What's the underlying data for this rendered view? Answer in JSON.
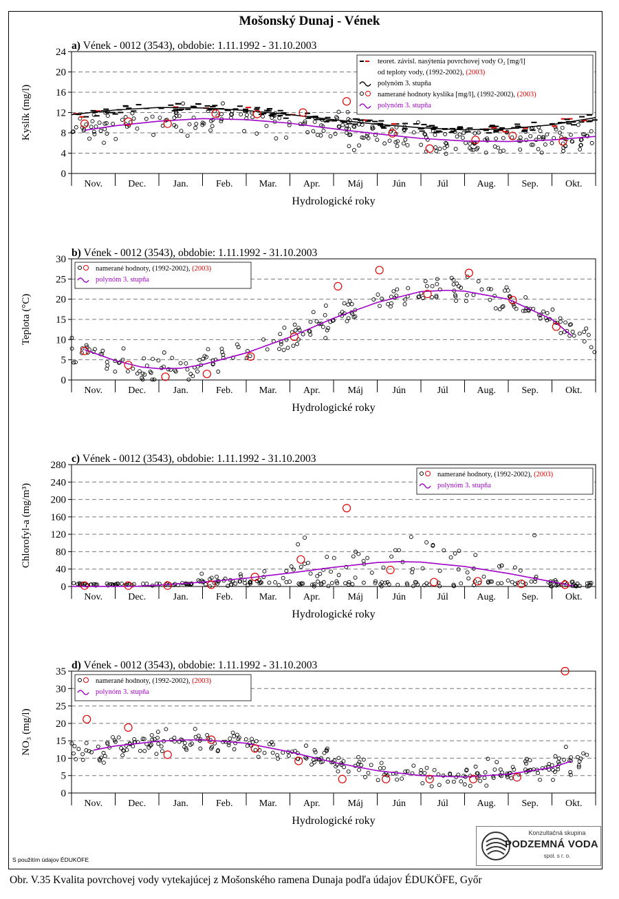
{
  "figure": {
    "title": "Mošonský Dunaj - Vének",
    "note": "S použitím údajov ÉDUKÖFE",
    "caption": "Obr. V.35 Kvalita povrchovej vody vytekajúcej z Mošonského ramena Dunaja podľa údajov ÉDUKÖFE, Győr",
    "logo": {
      "top": "Konzultačná skupina",
      "main": "PODZEMNÁ VODA",
      "bottom": "spol. s r. o."
    },
    "colors": {
      "history": "#000000",
      "year2003": "#e00000",
      "polynomial": "#a000c8",
      "grid": "#777777"
    }
  },
  "chart_data": [
    {
      "type": "scatter",
      "id": "a",
      "title_prefix": "a)",
      "title": "Vének - 0012 (3543), obdobie: 1.11.1992 - 31.10.2003",
      "xlabel": "Hydrologické roky",
      "ylabel": "Kyslík  (mg/l)",
      "categories": [
        "Nov.",
        "Dec.",
        "Jan.",
        "Feb.",
        "Mar.",
        "Apr.",
        "Máj",
        "Jún",
        "Júl",
        "Aug.",
        "Sep.",
        "Okt."
      ],
      "ylim": [
        0,
        24
      ],
      "yticks": [
        0,
        4,
        8,
        12,
        16,
        20,
        24
      ],
      "grid": true,
      "legend_position": "top-right",
      "legend": [
        {
          "marker": "dash-pair",
          "label": "teoret. závisl. nasýtenia povrchovej vody O₂ [mg/l]",
          "label2": "od teploty vody, (1992-2002),",
          "extra": "(2003)"
        },
        {
          "marker": "tilde-black",
          "label": "polynóm 3. stupňa"
        },
        {
          "marker": "circle-pair",
          "label": "namerané hodnoty kyslíka [mg/l], (1992-2002),",
          "extra": "(2003)"
        },
        {
          "marker": "tilde-purple",
          "label": "polynóm 3. stupňa"
        }
      ],
      "measured_2003": [
        [
          0.3,
          9.8
        ],
        [
          1.3,
          10.2
        ],
        [
          2.2,
          9.8
        ],
        [
          3.3,
          11.8
        ],
        [
          4.25,
          11.7
        ],
        [
          5.3,
          12
        ],
        [
          6.3,
          14.2
        ],
        [
          7.35,
          7.9
        ],
        [
          8.2,
          4.9
        ],
        [
          9.25,
          6.6
        ],
        [
          10.1,
          7.4
        ],
        [
          11.25,
          6.3
        ]
      ],
      "polynomial_measured": [
        [
          0.3,
          8.5
        ],
        [
          1,
          9.4
        ],
        [
          2,
          10.3
        ],
        [
          3,
          10.8
        ],
        [
          4,
          10.6
        ],
        [
          5,
          9.9
        ],
        [
          6,
          8.8
        ],
        [
          7,
          7.8
        ],
        [
          8,
          6.9
        ],
        [
          9,
          6.4
        ],
        [
          10,
          6.3
        ],
        [
          11,
          6.6
        ],
        [
          12,
          7.3
        ]
      ],
      "polynomial_theoretical": [
        [
          0,
          11.6
        ],
        [
          1,
          12.5
        ],
        [
          2,
          13
        ],
        [
          3,
          12.9
        ],
        [
          4,
          12.4
        ],
        [
          5,
          11.6
        ],
        [
          6,
          10.6
        ],
        [
          7,
          9.7
        ],
        [
          8,
          9
        ],
        [
          9,
          8.6
        ],
        [
          10,
          8.8
        ],
        [
          11,
          9.6
        ],
        [
          12,
          11
        ]
      ]
    },
    {
      "type": "scatter",
      "id": "b",
      "title_prefix": "b)",
      "title": "Vének - 0012 (3543), obdobie: 1.11.1992 - 31.10.2003",
      "xlabel": "Hydrologické roky",
      "ylabel": "Teplota  (°C)",
      "categories": [
        "Nov.",
        "Dec.",
        "Jan.",
        "Feb.",
        "Mar.",
        "Apr.",
        "Máj",
        "Jún",
        "Júl",
        "Aug.",
        "Sep.",
        "Okt."
      ],
      "ylim": [
        0,
        30
      ],
      "yticks": [
        0,
        5,
        10,
        15,
        20,
        25,
        30
      ],
      "grid": true,
      "legend_position": "top-left",
      "legend": [
        {
          "marker": "circle-pair",
          "label": "namerané hodnoty, (1992-2002),",
          "extra": "(2003)"
        },
        {
          "marker": "tilde-purple",
          "label": "polynóm 3. stupňa"
        }
      ],
      "measured_2003": [
        [
          0.3,
          7.2
        ],
        [
          1.3,
          3.7
        ],
        [
          2.15,
          0.8
        ],
        [
          3.1,
          1.5
        ],
        [
          4.1,
          5.8
        ],
        [
          5.1,
          10.7
        ],
        [
          6.1,
          23.2
        ],
        [
          7.05,
          27.2
        ],
        [
          8.15,
          21.3
        ],
        [
          9.1,
          26.5
        ],
        [
          10.1,
          19.8
        ],
        [
          11.1,
          13.2
        ]
      ],
      "polynomial": [
        [
          0.3,
          7.5
        ],
        [
          1,
          4.8
        ],
        [
          1.6,
          3.2
        ],
        [
          2,
          2.8
        ],
        [
          2.5,
          2.9
        ],
        [
          3,
          3.8
        ],
        [
          4,
          6.7
        ],
        [
          5,
          10.6
        ],
        [
          6,
          15.3
        ],
        [
          7,
          19.2
        ],
        [
          8,
          21.9
        ],
        [
          8.6,
          22.2
        ],
        [
          9,
          22
        ],
        [
          10,
          20
        ],
        [
          11,
          15
        ],
        [
          11.45,
          11
        ]
      ]
    },
    {
      "type": "scatter",
      "id": "c",
      "title_prefix": "c)",
      "title": "Vének - 0012 (3543), obdobie: 1.11.1992 - 31.10.2003",
      "xlabel": "Hydrologické roky",
      "ylabel": "Chlorofyl-a  (mg/m³)",
      "categories": [
        "Nov.",
        "Dec.",
        "Jan.",
        "Feb.",
        "Mar.",
        "Apr.",
        "Máj",
        "Jún",
        "Júl",
        "Aug.",
        "Sep.",
        "Okt."
      ],
      "ylim": [
        0,
        280
      ],
      "yticks": [
        0,
        40,
        80,
        120,
        160,
        200,
        240,
        280
      ],
      "grid": true,
      "legend_position": "top-right",
      "legend": [
        {
          "marker": "circle-pair",
          "label": "namerané hodnoty, (1992-2002),",
          "extra": "(2003)"
        },
        {
          "marker": "tilde-purple",
          "label": "polynóm 3. stupňa"
        }
      ],
      "measured_2003": [
        [
          0.3,
          2
        ],
        [
          1.3,
          2
        ],
        [
          2.2,
          2
        ],
        [
          3.2,
          4
        ],
        [
          4.2,
          22
        ],
        [
          5.25,
          62
        ],
        [
          6.3,
          180
        ],
        [
          7.3,
          38
        ],
        [
          8.3,
          10
        ],
        [
          9.3,
          12
        ],
        [
          10.3,
          6
        ],
        [
          11.3,
          4
        ]
      ],
      "polynomial": [
        [
          0,
          0
        ],
        [
          1.5,
          0.5
        ],
        [
          2,
          3
        ],
        [
          3,
          10
        ],
        [
          4,
          19
        ],
        [
          5,
          31
        ],
        [
          6,
          44
        ],
        [
          7,
          55
        ],
        [
          7.5,
          57
        ],
        [
          8,
          56
        ],
        [
          9,
          46
        ],
        [
          10,
          30
        ],
        [
          11,
          11
        ],
        [
          11.5,
          1
        ]
      ]
    },
    {
      "type": "scatter",
      "id": "d",
      "title_prefix": "d)",
      "title": "Vének - 0012 (3543), obdobie: 1.11.1992 - 31.10.2003",
      "xlabel": "Hydrologické roky",
      "ylabel": "NO₃  (mg/l)",
      "categories": [
        "Nov.",
        "Dec.",
        "Jan.",
        "Feb.",
        "Mar.",
        "Apr.",
        "Máj",
        "Jún",
        "Júl",
        "Aug.",
        "Sep.",
        "Okt."
      ],
      "ylim": [
        0,
        35
      ],
      "yticks": [
        0,
        5,
        10,
        15,
        20,
        25,
        30,
        35
      ],
      "grid": true,
      "legend_position": "top-left",
      "legend": [
        {
          "marker": "circle-pair",
          "label": "namerané hodnoty, (1992-2002),",
          "extra": "(2003)"
        },
        {
          "marker": "tilde-purple",
          "label": "polynóm 3. stupňa"
        }
      ],
      "measured_2003": [
        [
          0.35,
          21.2
        ],
        [
          1.3,
          18.8
        ],
        [
          2.2,
          11
        ],
        [
          3.2,
          15.3
        ],
        [
          4.2,
          12.8
        ],
        [
          5.2,
          9.2
        ],
        [
          6.2,
          4
        ],
        [
          7.2,
          4
        ],
        [
          8.2,
          4
        ],
        [
          9.2,
          4
        ],
        [
          10.2,
          4.5
        ],
        [
          11.3,
          35
        ]
      ],
      "polynomial": [
        [
          0.5,
          12.3
        ],
        [
          1,
          13.5
        ],
        [
          2,
          14.9
        ],
        [
          2.5,
          15.2
        ],
        [
          3,
          15.3
        ],
        [
          4,
          14.3
        ],
        [
          5,
          11.8
        ],
        [
          6,
          8.8
        ],
        [
          7,
          6.4
        ],
        [
          8,
          5
        ],
        [
          9,
          4.6
        ],
        [
          10,
          5.4
        ],
        [
          11,
          7.3
        ],
        [
          11.45,
          9.2
        ]
      ]
    }
  ]
}
